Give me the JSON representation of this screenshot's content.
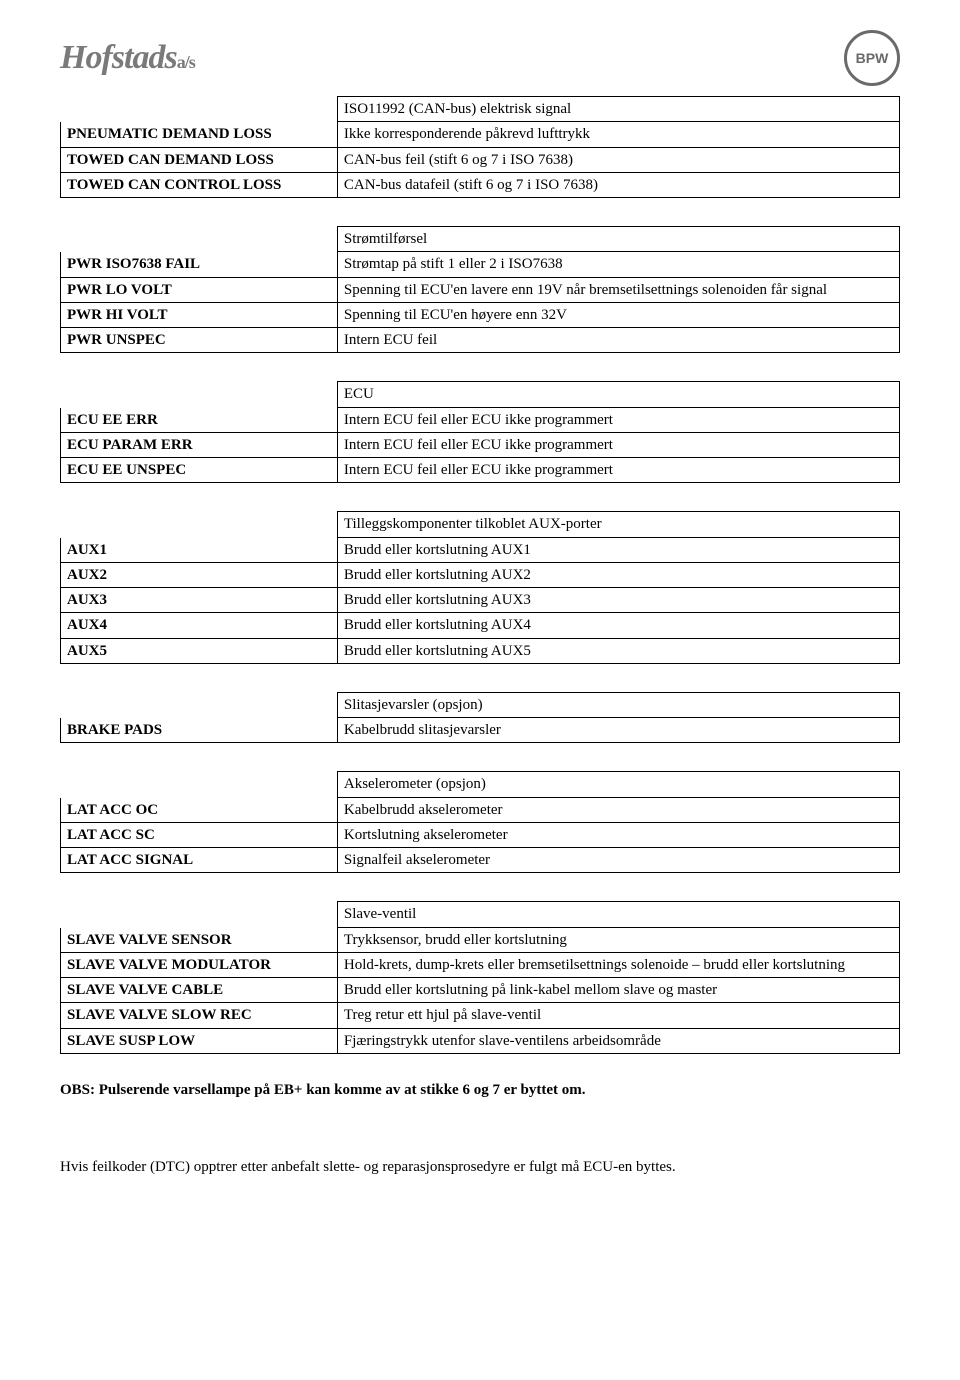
{
  "logos": {
    "left_main": "Hofstads",
    "left_suffix": "a/s",
    "right_text": "BPW"
  },
  "tables": [
    {
      "header": "ISO11992 (CAN-bus) elektrisk signal",
      "rows": [
        {
          "label": "PNEUMATIC DEMAND LOSS",
          "desc": "Ikke korresponderende påkrevd lufttrykk"
        },
        {
          "label": "TOWED CAN DEMAND LOSS",
          "desc": "CAN-bus feil (stift 6 og 7 i ISO 7638)"
        },
        {
          "label": "TOWED CAN CONTROL LOSS",
          "desc": "CAN-bus datafeil (stift 6 og 7 i ISO 7638)"
        }
      ]
    },
    {
      "header": "Strømtilførsel",
      "rows": [
        {
          "label": "PWR ISO7638 FAIL",
          "desc": "Strømtap på stift 1 eller 2 i ISO7638"
        },
        {
          "label": "PWR LO VOLT",
          "desc": "Spenning til ECU'en lavere enn 19V når bremsetilsettnings solenoiden får signal"
        },
        {
          "label": "PWR HI VOLT",
          "desc": "Spenning til ECU'en høyere enn 32V"
        },
        {
          "label": "PWR UNSPEC",
          "desc": "Intern ECU feil"
        }
      ]
    },
    {
      "header": "ECU",
      "rows": [
        {
          "label": "ECU EE ERR",
          "desc": "Intern ECU feil eller ECU ikke programmert"
        },
        {
          "label": "ECU PARAM ERR",
          "desc": "Intern ECU feil eller ECU ikke programmert"
        },
        {
          "label": "ECU EE UNSPEC",
          "desc": "Intern ECU feil eller ECU ikke programmert"
        }
      ]
    },
    {
      "header": "Tilleggskomponenter tilkoblet AUX-porter",
      "rows": [
        {
          "label": "AUX1",
          "desc": "Brudd eller kortslutning AUX1"
        },
        {
          "label": "AUX2",
          "desc": "Brudd eller kortslutning AUX2"
        },
        {
          "label": "AUX3",
          "desc": "Brudd eller kortslutning AUX3"
        },
        {
          "label": "AUX4",
          "desc": "Brudd eller kortslutning AUX4"
        },
        {
          "label": "AUX5",
          "desc": "Brudd eller kortslutning AUX5"
        }
      ]
    },
    {
      "header": "Slitasjevarsler (opsjon)",
      "rows": [
        {
          "label": "BRAKE PADS",
          "desc": "Kabelbrudd slitasjevarsler"
        }
      ]
    },
    {
      "header": "Akselerometer (opsjon)",
      "rows": [
        {
          "label": "LAT ACC OC",
          "desc": "Kabelbrudd akselerometer"
        },
        {
          "label": "LAT ACC SC",
          "desc": "Kortslutning akselerometer"
        },
        {
          "label": "LAT ACC SIGNAL",
          "desc": "Signalfeil akselerometer"
        }
      ]
    },
    {
      "header": "Slave-ventil",
      "rows": [
        {
          "label": "SLAVE VALVE SENSOR",
          "desc": "Trykksensor, brudd eller kortslutning"
        },
        {
          "label": "SLAVE VALVE MODULATOR",
          "desc": "Hold-krets, dump-krets eller bremsetilsettnings solenoide – brudd eller kortslutning"
        },
        {
          "label": "SLAVE VALVE CABLE",
          "desc": "Brudd eller kortslutning på link-kabel mellom slave og master"
        },
        {
          "label": "SLAVE VALVE SLOW REC",
          "desc": "Treg retur ett hjul på slave-ventil"
        },
        {
          "label": "SLAVE SUSP LOW",
          "desc": "Fjæringstrykk utenfor slave-ventilens arbeidsområde"
        }
      ]
    }
  ],
  "note": "OBS: Pulserende varsellampe på EB+ kan komme av at stikke 6 og 7 er byttet om.",
  "tail": "Hvis feilkoder (DTC) opptrer etter anbefalt slette- og reparasjonsprosedyre er fulgt må ECU-en byttes."
}
